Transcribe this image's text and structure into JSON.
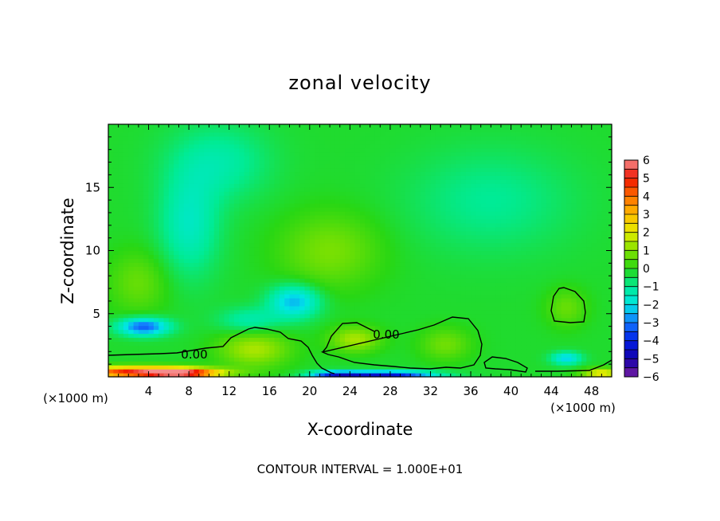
{
  "chart_data": {
    "type": "heatmap",
    "title": "zonal velocity",
    "xlabel": "X-coordinate",
    "ylabel": "Z-coordinate",
    "x_unit_left": "(×1000 m)",
    "x_unit_right": "(×1000 m)",
    "footer": "CONTOUR INTERVAL = 1.000E+01",
    "xlim": [
      0,
      50
    ],
    "ylim": [
      0,
      20
    ],
    "x_ticks": [
      4,
      8,
      12,
      16,
      20,
      24,
      28,
      32,
      36,
      40,
      44,
      48
    ],
    "y_ticks": [
      5,
      10,
      15
    ],
    "colorbar": {
      "min": -6,
      "max": 6,
      "step": 0.5,
      "labels": [
        "6",
        "5",
        "4",
        "3",
        "2",
        "1",
        "0",
        "−1",
        "−2",
        "−3",
        "−4",
        "−5",
        "−6"
      ]
    },
    "contour_labels": [
      {
        "text": "0.00",
        "x": 8.7,
        "z": 1.9
      },
      {
        "text": "0.00",
        "x": 27.1,
        "z": 3.4
      }
    ],
    "contour_level": 0.0,
    "grid": false,
    "features": [
      {
        "x": 3.0,
        "z": 0.4,
        "value": 5.2,
        "sx": 6.5,
        "sz": 0.45
      },
      {
        "x": 7.5,
        "z": 0.3,
        "value": 4.0,
        "sx": 3.5,
        "sz": 0.35
      },
      {
        "x": 14.5,
        "z": 2.2,
        "value": 1.6,
        "sx": 3.5,
        "sz": 1.4
      },
      {
        "x": 24.5,
        "z": 3.0,
        "value": 1.6,
        "sx": 2.5,
        "sz": 1.0
      },
      {
        "x": 33.5,
        "z": 2.6,
        "value": 1.0,
        "sx": 2.5,
        "sz": 1.3
      },
      {
        "x": 49.0,
        "z": 0.3,
        "value": 2.5,
        "sx": 2.0,
        "sz": 0.4
      },
      {
        "x": 27.5,
        "z": 0.2,
        "value": -4.2,
        "sx": 5.0,
        "sz": 0.3
      },
      {
        "x": 22.5,
        "z": 0.2,
        "value": -2.8,
        "sx": 2.5,
        "sz": 0.3
      },
      {
        "x": 3.5,
        "z": 4.0,
        "value": -3.2,
        "sx": 2.5,
        "sz": 0.7
      },
      {
        "x": 18.5,
        "z": 6.0,
        "value": -2.3,
        "sx": 2.5,
        "sz": 1.3
      },
      {
        "x": 45.5,
        "z": 1.5,
        "value": -2.0,
        "sx": 1.5,
        "sz": 0.5
      },
      {
        "x": 3.0,
        "z": 7.5,
        "value": 0.9,
        "sx": 3.0,
        "sz": 2.5
      },
      {
        "x": 22.0,
        "z": 10.0,
        "value": 1.1,
        "sx": 5.0,
        "sz": 3.0
      },
      {
        "x": 45.5,
        "z": 5.5,
        "value": 0.9,
        "sx": 2.0,
        "sz": 1.5
      },
      {
        "x": 8.0,
        "z": 12.0,
        "value": -1.3,
        "sx": 3.0,
        "sz": 4.0
      },
      {
        "x": 11.0,
        "z": 17.0,
        "value": -1.0,
        "sx": 5.0,
        "sz": 3.0
      },
      {
        "x": 14.0,
        "z": 4.5,
        "value": -1.1,
        "sx": 3.0,
        "sz": 1.0
      },
      {
        "x": 38.0,
        "z": 14.0,
        "value": -0.8,
        "sx": 8.0,
        "sz": 4.0
      }
    ],
    "background_value": -0.2
  }
}
